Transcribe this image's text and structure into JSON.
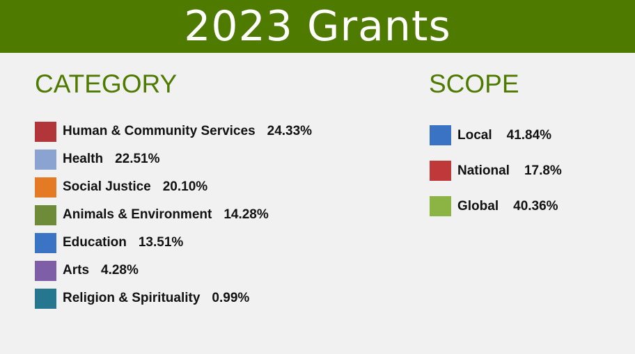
{
  "chart_data": {
    "type": "table",
    "title": "2023 Grants",
    "groups": [
      {
        "title": "CATEGORY",
        "items": [
          {
            "label": "Human & Community Services",
            "value": "24.33%",
            "color": "#b2353a"
          },
          {
            "label": "Health",
            "value": "22.51%",
            "color": "#8aa3d0"
          },
          {
            "label": "Social Justice",
            "value": "20.10%",
            "color": "#e47b24"
          },
          {
            "label": "Animals & Environment",
            "value": "14.28%",
            "color": "#6e8b39"
          },
          {
            "label": "Education",
            "value": "13.51%",
            "color": "#3b74c5"
          },
          {
            "label": "Arts",
            "value": "4.28%",
            "color": "#7f5ea8"
          },
          {
            "label": "Religion & Spirituality",
            "value": "0.99%",
            "color": "#267690"
          }
        ]
      },
      {
        "title": "SCOPE",
        "items": [
          {
            "label": "Local",
            "value": "41.84%",
            "color": "#3a73c4"
          },
          {
            "label": "National",
            "value": "17.8%",
            "color": "#c0393a"
          },
          {
            "label": "Global",
            "value": "40.36%",
            "color": "#8cb445"
          }
        ]
      }
    ]
  }
}
